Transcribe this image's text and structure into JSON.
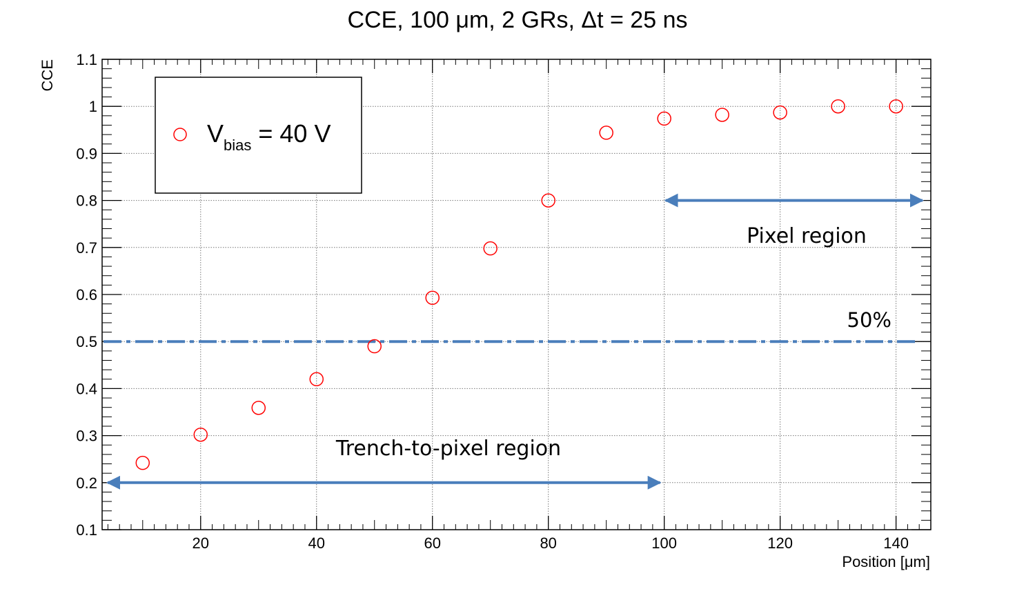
{
  "chart_data": {
    "type": "scatter",
    "title": "CCE, 100 μm, 2 GRs, Δt = 25 ns",
    "xlabel": "Position [μm]",
    "ylabel": "CCE",
    "xlim": [
      3,
      146
    ],
    "ylim": [
      0.1,
      1.1
    ],
    "x_ticks": [
      20,
      40,
      60,
      80,
      100,
      120,
      140
    ],
    "x_tick_labels": [
      "20",
      "40",
      "60",
      "80",
      "100",
      "120",
      "140"
    ],
    "y_ticks": [
      0.1,
      0.2,
      0.3,
      0.4,
      0.5,
      0.6,
      0.7,
      0.8,
      0.9,
      1.0,
      1.1
    ],
    "y_tick_labels": [
      "0.1",
      "0.2",
      "0.3",
      "0.4",
      "0.5",
      "0.6",
      "0.7",
      "0.8",
      "0.9",
      "1",
      "1.1"
    ],
    "grid": true,
    "legend_position": "top-left",
    "series": [
      {
        "name": "V_bias = 40 V",
        "color": "#ff0000",
        "marker": "open-circle",
        "x": [
          10,
          20,
          30,
          40,
          50,
          60,
          70,
          80,
          90,
          100,
          110,
          120,
          130,
          140
        ],
        "y": [
          0.242,
          0.302,
          0.359,
          0.42,
          0.49,
          0.593,
          0.698,
          0.8,
          0.944,
          0.974,
          0.982,
          0.987,
          1.0,
          1.0
        ]
      }
    ],
    "legend": {
      "main": "V",
      "subscript": "bias",
      "suffix": " = 40 V"
    },
    "reference_line": {
      "y": 0.5,
      "label": "50%",
      "color": "#4a7ebb",
      "style": "dash-dot"
    },
    "annotations": {
      "pixel_region": {
        "text": "Pixel region",
        "x_from": 100,
        "x_to": 146,
        "y": 0.8,
        "color": "#4a7ebb"
      },
      "trench_region": {
        "text": "Trench-to-pixel region",
        "x_from": 3,
        "x_to": 100,
        "y": 0.2,
        "color": "#4a7ebb"
      }
    }
  }
}
